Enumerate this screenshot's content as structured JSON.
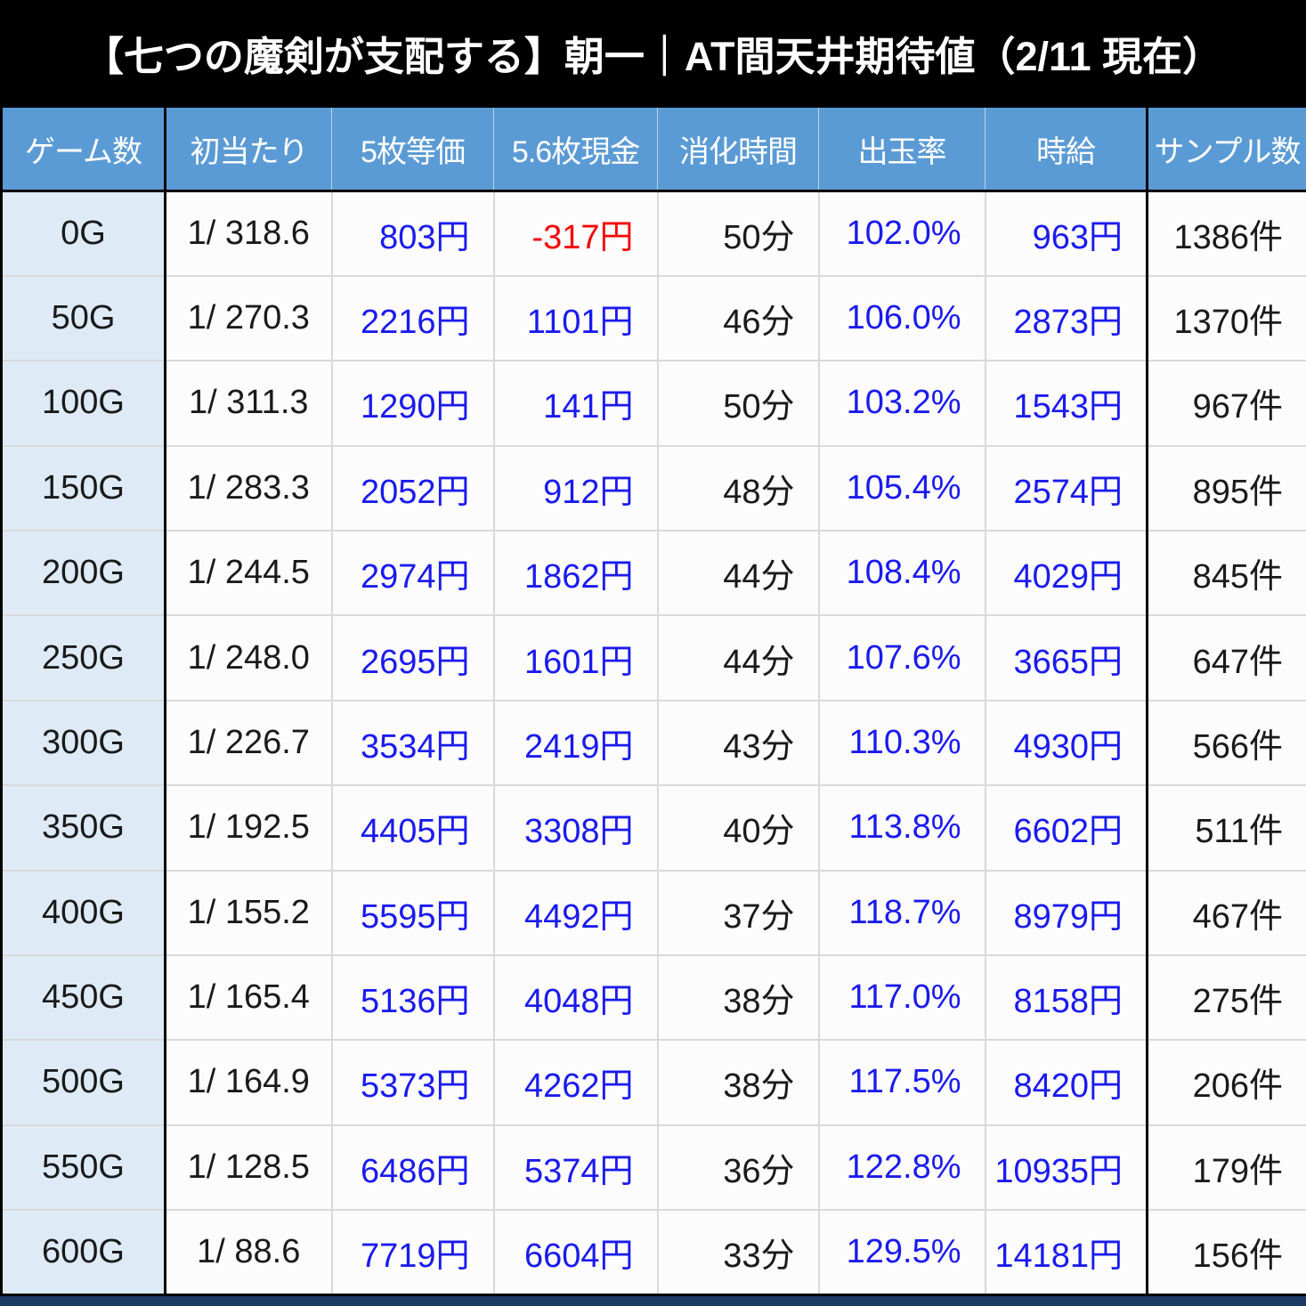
{
  "title": "【七つの魔剣が支配する】朝一｜AT間天井期待値（2/11 現在）",
  "colors": {
    "banner_bg": "#000000",
    "header_bg": "#5b9bd5",
    "first_column_bg": "#deebf7",
    "value_blue": "#1a1aee",
    "value_red": "#f40606",
    "value_black": "#1a1a1a",
    "grid_line": "#d9d9d9",
    "bottom_strip": "#1b3a63"
  },
  "chart_data": {
    "type": "table",
    "title": "【七つの魔剣が支配する】朝一｜AT間天井期待値（2/11 現在）",
    "columns": [
      {
        "key": "games",
        "label": "ゲーム数",
        "align": "center",
        "color": "black"
      },
      {
        "key": "first_hit",
        "label": "初当たり",
        "align": "center",
        "color": "black"
      },
      {
        "key": "equiv5",
        "label": "5枚等価",
        "align": "right",
        "color": "blue"
      },
      {
        "key": "cash56",
        "label": "5.6枚現金",
        "align": "right",
        "color": "blue"
      },
      {
        "key": "time",
        "label": "消化時間",
        "align": "right",
        "color": "black"
      },
      {
        "key": "payout",
        "label": "出玉率",
        "align": "right",
        "color": "blue"
      },
      {
        "key": "hourly",
        "label": "時給",
        "align": "right",
        "color": "blue"
      },
      {
        "key": "samples",
        "label": "サンプル数",
        "align": "right",
        "color": "black"
      }
    ],
    "rows": [
      {
        "cells": [
          "0G",
          "1/ 318.6",
          "803円",
          "-317円",
          "50分",
          "102.0%",
          "963円",
          "1386件"
        ],
        "cell_colors": {
          "3": "red"
        }
      },
      {
        "cells": [
          "50G",
          "1/ 270.3",
          "2216円",
          "1101円",
          "46分",
          "106.0%",
          "2873円",
          "1370件"
        ]
      },
      {
        "cells": [
          "100G",
          "1/ 311.3",
          "1290円",
          "141円",
          "50分",
          "103.2%",
          "1543円",
          "967件"
        ]
      },
      {
        "cells": [
          "150G",
          "1/ 283.3",
          "2052円",
          "912円",
          "48分",
          "105.4%",
          "2574円",
          "895件"
        ]
      },
      {
        "cells": [
          "200G",
          "1/ 244.5",
          "2974円",
          "1862円",
          "44分",
          "108.4%",
          "4029円",
          "845件"
        ]
      },
      {
        "cells": [
          "250G",
          "1/ 248.0",
          "2695円",
          "1601円",
          "44分",
          "107.6%",
          "3665円",
          "647件"
        ]
      },
      {
        "cells": [
          "300G",
          "1/ 226.7",
          "3534円",
          "2419円",
          "43分",
          "110.3%",
          "4930円",
          "566件"
        ]
      },
      {
        "cells": [
          "350G",
          "1/ 192.5",
          "4405円",
          "3308円",
          "40分",
          "113.8%",
          "6602円",
          "511件"
        ]
      },
      {
        "cells": [
          "400G",
          "1/ 155.2",
          "5595円",
          "4492円",
          "37分",
          "118.7%",
          "8979円",
          "467件"
        ]
      },
      {
        "cells": [
          "450G",
          "1/ 165.4",
          "5136円",
          "4048円",
          "38分",
          "117.0%",
          "8158円",
          "275件"
        ]
      },
      {
        "cells": [
          "500G",
          "1/ 164.9",
          "5373円",
          "4262円",
          "38分",
          "117.5%",
          "8420円",
          "206件"
        ]
      },
      {
        "cells": [
          "550G",
          "1/ 128.5",
          "6486円",
          "5374円",
          "36分",
          "122.8%",
          "10935円",
          "179件"
        ]
      },
      {
        "cells": [
          "600G",
          "1/ 88.6",
          "7719円",
          "6604円",
          "33分",
          "129.5%",
          "14181円",
          "156件"
        ]
      }
    ]
  }
}
